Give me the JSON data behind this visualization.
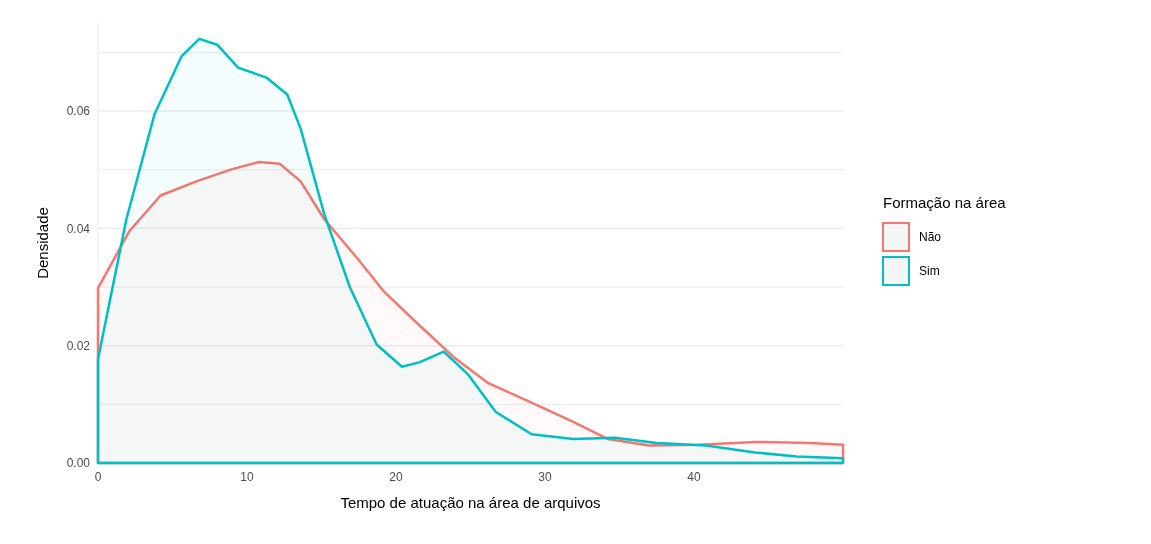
{
  "chart_data": {
    "type": "area",
    "xlabel": "Tempo de atuação na área de arquivos",
    "ylabel": "Densidade",
    "legend_title": "Formação na área",
    "legend": "right",
    "grid": "y",
    "xlim": [
      0,
      50
    ],
    "xticks": [
      0,
      10,
      20,
      30,
      40
    ],
    "ylim": [
      0,
      0.075
    ],
    "yticks": [
      {
        "value": 0,
        "label": "0.00"
      },
      {
        "value": 0.01,
        "label": null
      },
      0.02,
      {
        "value": 0.03,
        "label": null
      },
      0.04,
      {
        "value": 0.05,
        "label": null
      },
      0.06,
      {
        "value": 0.07,
        "label": null
      }
    ],
    "series": [
      {
        "name": "Não",
        "color": "#f8766d",
        "x": [
          0,
          2.1,
          4.2,
          6.6,
          8.9,
          10.8,
          12.2,
          13.6,
          15.2,
          17.4,
          19.2,
          21.6,
          23.9,
          26.2,
          29.1,
          31.9,
          34.2,
          37,
          40.3,
          44.1,
          47.8,
          50
        ],
        "values": [
          0.0298,
          0.0395,
          0.0456,
          0.048,
          0.05,
          0.0513,
          0.051,
          0.048,
          0.0415,
          0.0349,
          0.0292,
          0.0234,
          0.018,
          0.0136,
          0.0103,
          0.007,
          0.0041,
          0.003,
          0.0031,
          0.0036,
          0.0034,
          0.0031
        ]
      },
      {
        "name": "Sim",
        "color": "#00bfc4",
        "x": [
          0,
          1.9,
          3.8,
          5.6,
          6.8,
          8,
          9.4,
          11.3,
          12.7,
          13.6,
          15.2,
          16.9,
          18.7,
          20.4,
          21.6,
          23.2,
          24.8,
          26.7,
          29.1,
          31.9,
          34.7,
          37.5,
          40.8,
          44.1,
          46.9,
          50
        ],
        "values": [
          0.0177,
          0.0415,
          0.0595,
          0.0693,
          0.0723,
          0.0713,
          0.0674,
          0.0657,
          0.0628,
          0.057,
          0.0423,
          0.03,
          0.0202,
          0.0164,
          0.0172,
          0.019,
          0.0152,
          0.0087,
          0.0049,
          0.0041,
          0.0043,
          0.0034,
          0.003,
          0.0018,
          0.0011,
          0.0008
        ]
      }
    ]
  }
}
